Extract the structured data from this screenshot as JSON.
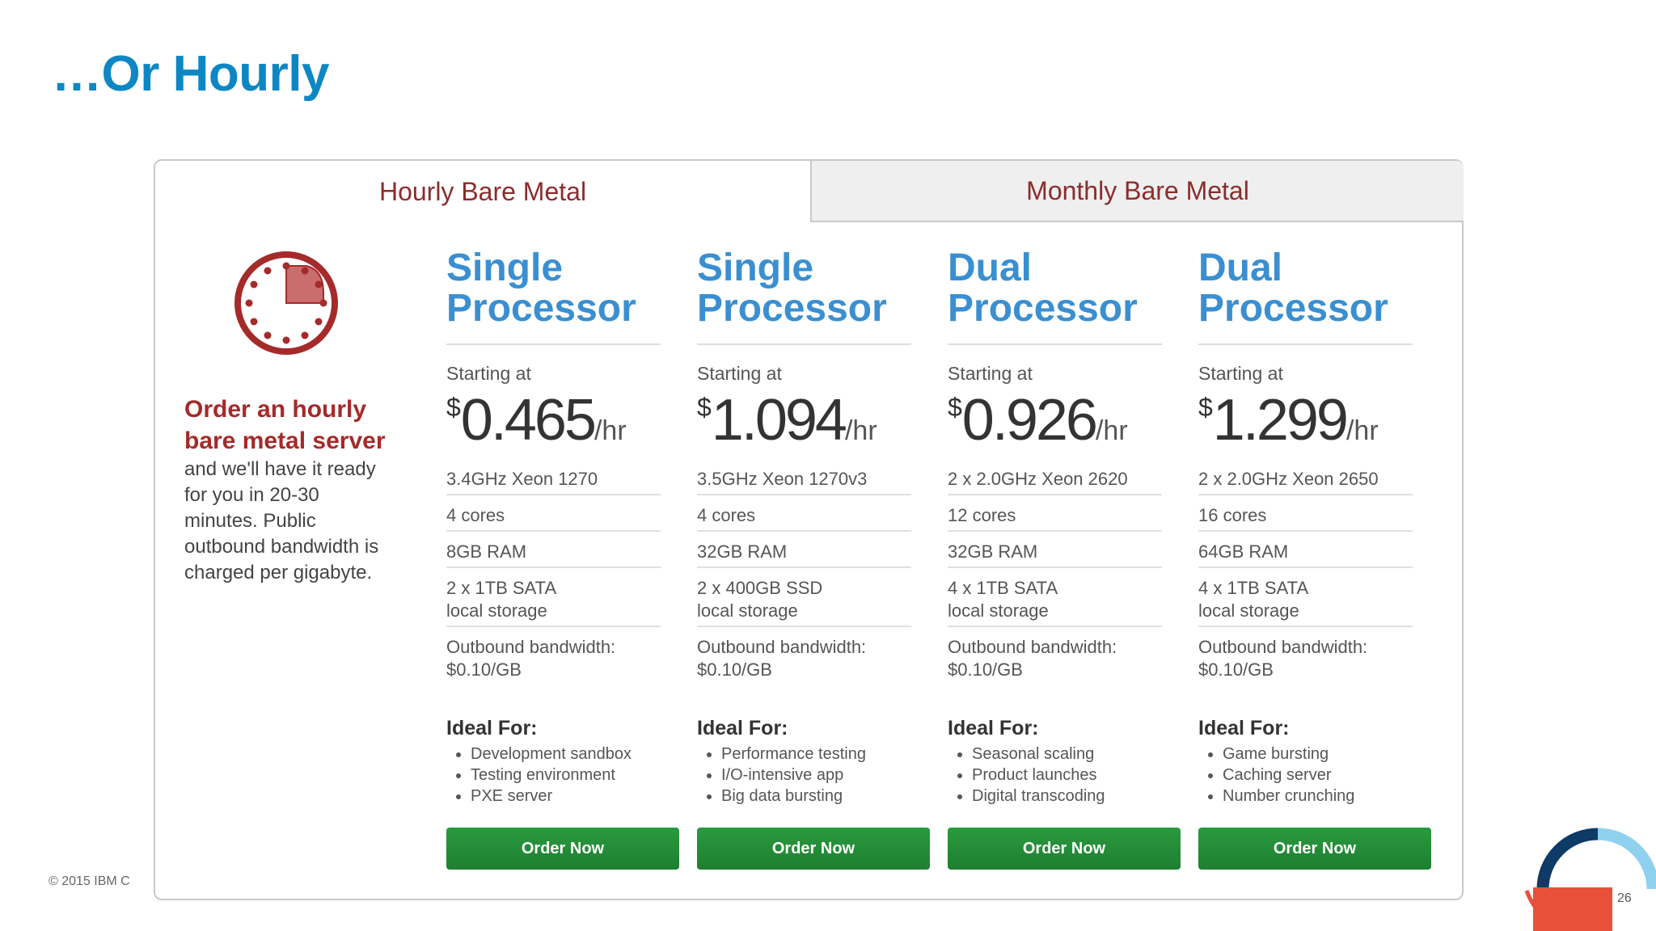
{
  "slide": {
    "title": "…Or Hourly",
    "copyright": "© 2015 IBM C",
    "page_number": "26"
  },
  "tabs": [
    {
      "label": "Hourly Bare Metal",
      "selected": true
    },
    {
      "label": "Monthly Bare Metal",
      "selected": false
    }
  ],
  "intro": {
    "heading_line1": "Order an hourly",
    "heading_line2": "bare metal server",
    "body_lines": [
      "and we'll have it ready",
      "for you in 20-30",
      "minutes. Public",
      "outbound bandwidth is",
      "charged per gigabyte."
    ]
  },
  "labels": {
    "starting_at": "Starting at",
    "currency": "$",
    "unit": "/hr",
    "ideal_for": "Ideal For:",
    "order_button": "Order Now"
  },
  "colors": {
    "title_blue": "#0c87c4",
    "plan_blue": "#3a8fd1",
    "accent_red": "#a52a2a",
    "button_green": "#1e7f30"
  },
  "plans": [
    {
      "name_line1": "Single",
      "name_line2": "Processor",
      "price": "0.465",
      "cpu": "3.4GHz Xeon 1270",
      "cores": "4 cores",
      "ram": "8GB RAM",
      "storage_line1": "2 x 1TB SATA",
      "storage_line2": "local storage",
      "bandwidth_line1": "Outbound bandwidth:",
      "bandwidth_line2": "$0.10/GB",
      "ideal": [
        "Development sandbox",
        "Testing environment",
        "PXE server"
      ]
    },
    {
      "name_line1": "Single",
      "name_line2": "Processor",
      "price": "1.094",
      "cpu": "3.5GHz Xeon 1270v3",
      "cores": "4 cores",
      "ram": "32GB RAM",
      "storage_line1": "2 x 400GB SSD",
      "storage_line2": "local storage",
      "bandwidth_line1": "Outbound bandwidth:",
      "bandwidth_line2": "$0.10/GB",
      "ideal": [
        "Performance testing",
        "I/O-intensive app",
        "Big data bursting"
      ]
    },
    {
      "name_line1": "Dual",
      "name_line2": "Processor",
      "price": "0.926",
      "cpu": "2 x 2.0GHz Xeon 2620",
      "cores": "12 cores",
      "ram": "32GB RAM",
      "storage_line1": "4 x 1TB SATA",
      "storage_line2": "local storage",
      "bandwidth_line1": "Outbound bandwidth:",
      "bandwidth_line2": "$0.10/GB",
      "ideal": [
        "Seasonal scaling",
        "Product launches",
        "Digital transcoding"
      ]
    },
    {
      "name_line1": "Dual",
      "name_line2": "Processor",
      "price": "1.299",
      "cpu": "2 x 2.0GHz Xeon 2650",
      "cores": "16 cores",
      "ram": "64GB RAM",
      "storage_line1": "4 x 1TB SATA",
      "storage_line2": "local storage",
      "bandwidth_line1": "Outbound bandwidth:",
      "bandwidth_line2": "$0.10/GB",
      "ideal": [
        "Game bursting",
        "Caching server",
        "Number crunching"
      ]
    }
  ]
}
